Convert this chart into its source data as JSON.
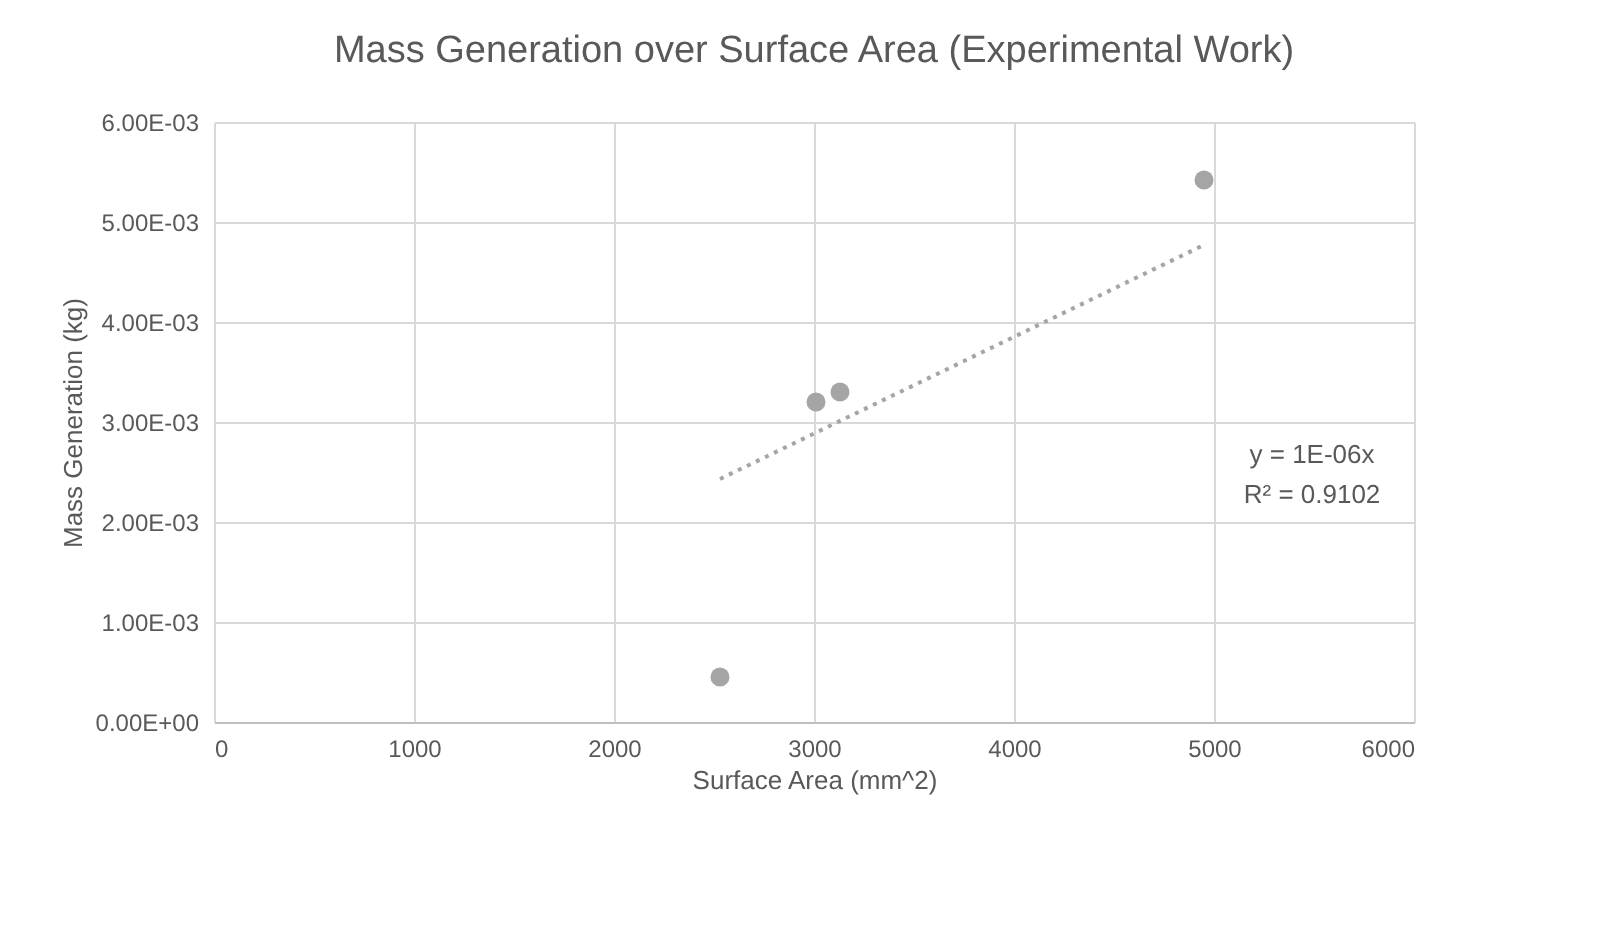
{
  "chart_data": {
    "type": "scatter",
    "title": "Mass Generation over Surface Area (Experimental Work)",
    "xlabel": "Surface Area (mm^2)",
    "ylabel": "Mass Generation (kg)",
    "series": [
      {
        "color": "#a5a5a5",
        "marker": "circle",
        "x": [
          2530,
          3010,
          3130,
          4950
        ],
        "values": [
          0.00045,
          0.0032,
          0.0033,
          0.00542
        ]
      },
      {
        "type": "line",
        "color": "#a5a5a5",
        "line_style": "dotted",
        "marker": "none",
        "x": [
          2530,
          4950
        ],
        "values": [
          0.00243,
          0.00477
        ]
      }
    ],
    "xlim": [
      0,
      6000
    ],
    "xticks": [
      0,
      1000,
      2000,
      3000,
      4000,
      5000,
      6000
    ],
    "ylim": [
      0,
      0.006
    ],
    "yticks": [
      {
        "value": 0,
        "label": "0.00E+00"
      },
      {
        "value": 0.001,
        "label": "1.00E-03"
      },
      {
        "value": 0.002,
        "label": "2.00E-03"
      },
      {
        "value": 0.003,
        "label": "3.00E-03"
      },
      {
        "value": 0.004,
        "label": "4.00E-03"
      },
      {
        "value": 0.005,
        "label": "5.00E-03"
      },
      {
        "value": 0.006,
        "label": "6.00E-03"
      }
    ],
    "annotations": [
      "y = 1E-06x",
      "R² = 0.9102"
    ],
    "grid": true
  }
}
